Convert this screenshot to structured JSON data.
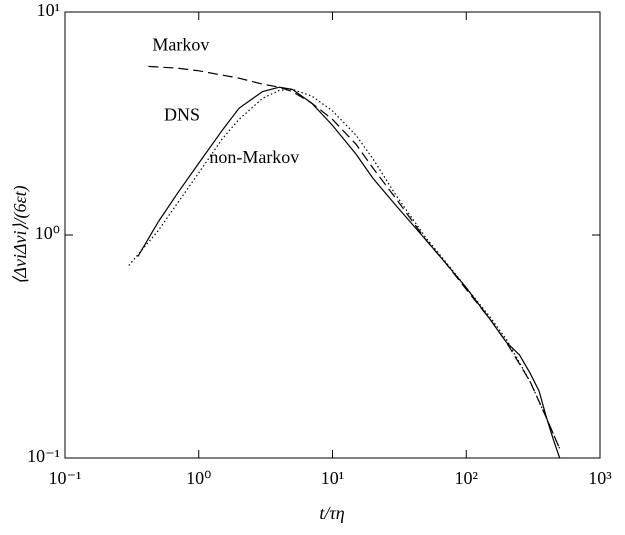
{
  "chart_data": {
    "type": "line",
    "x_label": "t/τη",
    "y_label": "⟨ΔviΔvi⟩/(6εt)",
    "xscale": "log",
    "yscale": "log",
    "xlim": [
      0.1,
      1000
    ],
    "ylim": [
      0.1,
      10
    ],
    "xticks": [
      {
        "value": 0.1,
        "label": "10⁻¹"
      },
      {
        "value": 1,
        "label": "10⁰"
      },
      {
        "value": 10,
        "label": "10¹"
      },
      {
        "value": 100,
        "label": "10²"
      },
      {
        "value": 1000,
        "label": "10³"
      }
    ],
    "yticks": [
      {
        "value": 0.1,
        "label": "10⁻¹"
      },
      {
        "value": 1,
        "label": "10⁰"
      },
      {
        "value": 10,
        "label": "10¹"
      }
    ],
    "annotations": [
      {
        "text": "Markov",
        "x": 0.45,
        "y": 7.0
      },
      {
        "text": "DNS",
        "x": 0.55,
        "y": 3.4
      },
      {
        "text": "non-Markov",
        "x": 1.2,
        "y": 2.2
      }
    ],
    "series": [
      {
        "name": "DNS",
        "color": "#000000",
        "dash": "solid",
        "x": [
          0.35,
          0.5,
          0.7,
          1,
          1.5,
          2,
          3,
          4,
          5,
          7,
          10,
          15,
          20,
          30,
          50,
          70,
          100,
          150,
          200,
          250,
          300,
          350,
          400,
          450,
          500
        ],
        "values": [
          0.8,
          1.15,
          1.55,
          2.1,
          2.95,
          3.7,
          4.4,
          4.6,
          4.5,
          3.9,
          3.1,
          2.3,
          1.8,
          1.35,
          0.95,
          0.75,
          0.58,
          0.42,
          0.33,
          0.29,
          0.24,
          0.2,
          0.15,
          0.12,
          0.1
        ]
      },
      {
        "name": "Markov",
        "color": "#000000",
        "dash": "dashed",
        "x": [
          0.42,
          0.7,
          1,
          2,
          3,
          4,
          5,
          7,
          10,
          15,
          20,
          30,
          50,
          70,
          100,
          150,
          200,
          300,
          400,
          500
        ],
        "values": [
          5.7,
          5.6,
          5.45,
          5.05,
          4.75,
          4.6,
          4.4,
          3.9,
          3.3,
          2.55,
          2.0,
          1.45,
          0.95,
          0.75,
          0.57,
          0.42,
          0.33,
          0.22,
          0.15,
          0.11
        ]
      },
      {
        "name": "non-Markov",
        "color": "#000000",
        "dash": "dotted",
        "x": [
          0.3,
          0.5,
          0.7,
          1,
          1.5,
          2,
          3,
          4,
          5,
          7,
          10,
          15,
          20,
          30,
          50,
          70,
          100,
          150,
          200,
          300,
          400,
          500
        ],
        "values": [
          0.73,
          1.05,
          1.4,
          1.9,
          2.7,
          3.3,
          4.1,
          4.45,
          4.5,
          4.2,
          3.6,
          2.8,
          2.2,
          1.5,
          0.97,
          0.76,
          0.58,
          0.43,
          0.34,
          0.22,
          0.15,
          0.11
        ]
      }
    ]
  }
}
